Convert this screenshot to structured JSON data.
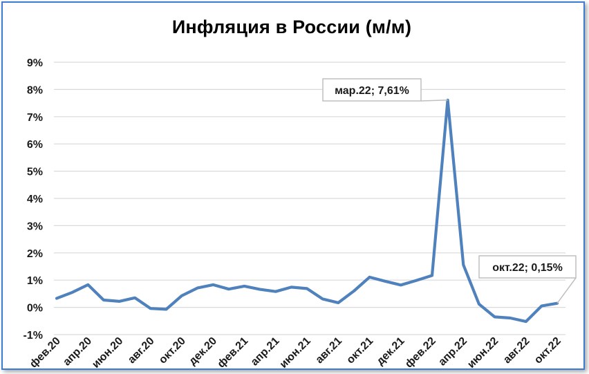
{
  "colors": {
    "line": "#4f81bd",
    "grid": "#d9d9d9",
    "frame": "#3a7bd5",
    "text": "#1a1a1a"
  },
  "chart_data": {
    "type": "line",
    "title": "Инфляция в России (м/м)",
    "xlabel": "",
    "ylabel": "",
    "ylim": [
      -1,
      9
    ],
    "yticks": [
      "-1%",
      "0%",
      "1%",
      "2%",
      "3%",
      "4%",
      "5%",
      "6%",
      "7%",
      "8%",
      "9%"
    ],
    "xtick_labels": [
      "фев.20",
      "апр.20",
      "июн.20",
      "авг.20",
      "окт.20",
      "дек.20",
      "фев.21",
      "апр.21",
      "июн.21",
      "авг.21",
      "окт.21",
      "дек.21",
      "фев.22",
      "апр.22",
      "июн.22",
      "авг.22",
      "окт.22"
    ],
    "grid": true,
    "legend": "none",
    "series": [
      {
        "x": [
          "фев.20",
          "мар.20",
          "апр.20",
          "май.20",
          "июн.20",
          "июл.20",
          "авг.20",
          "сен.20",
          "окт.20",
          "ноя.20",
          "дек.20",
          "янв.21",
          "фев.21",
          "мар.21",
          "апр.21",
          "май.21",
          "июн.21",
          "июл.21",
          "авг.21",
          "сен.21",
          "окт.21",
          "ноя.21",
          "дек.21",
          "янв.22",
          "фев.22",
          "мар.22",
          "апр.22",
          "май.22",
          "июн.22",
          "июл.22",
          "авг.22",
          "сен.22",
          "окт.22"
        ],
        "values": [
          0.33,
          0.55,
          0.83,
          0.27,
          0.22,
          0.35,
          -0.04,
          -0.07,
          0.43,
          0.71,
          0.83,
          0.67,
          0.78,
          0.66,
          0.58,
          0.74,
          0.69,
          0.31,
          0.17,
          0.6,
          1.11,
          0.96,
          0.82,
          0.99,
          1.17,
          7.61,
          1.56,
          0.12,
          -0.35,
          -0.39,
          -0.52,
          0.05,
          0.15
        ]
      }
    ],
    "annotations": [
      {
        "text": "мар.22; 7,61%",
        "x": "мар.22",
        "y": 7.61
      },
      {
        "text": "окт.22; 0,15%",
        "x": "окт.22",
        "y": 0.15
      }
    ]
  }
}
